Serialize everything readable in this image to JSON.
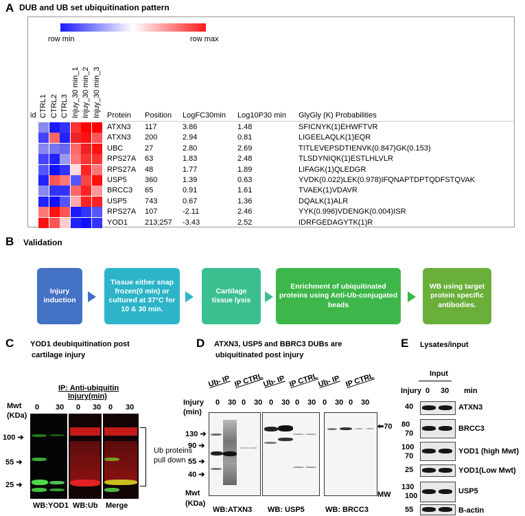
{
  "panelA": {
    "letter": "A",
    "title": "DUB and UB  set ubiquitination pattern",
    "scale": {
      "min_label": "row min",
      "max_label": "row max"
    },
    "id_label": "id",
    "samples": [
      "CTRL1",
      "CTRL2",
      "CTRL3",
      "Injuy_30 min_1",
      "Injuy_30 min_2",
      "Injuy_30 min_3"
    ],
    "headers": [
      "Protein",
      "Position",
      "LogFC30min",
      "Log10P30 min",
      "GlyGly (K) Probabilities"
    ],
    "rows": [
      {
        "protein": "ATXN3",
        "position": "117",
        "logfc": "3.86",
        "logp": "1.48",
        "glygly": "SFICNYK(1)EHWFTVR",
        "colors": [
          "#8888ee",
          "#1a1aff",
          "#3333ff",
          "#ff3333",
          "#ff0000",
          "#ff0000"
        ]
      },
      {
        "protein": "ATXN3",
        "position": "200",
        "logfc": "2.94",
        "logp": "0.81",
        "glygly": "LIGEELAQLK(1)EQR",
        "colors": [
          "#4444ff",
          "#ff6666",
          "#2222ff",
          "#ee2222",
          "#ff1111",
          "#ff5555"
        ]
      },
      {
        "protein": "UBC",
        "position": "27",
        "logfc": "2.80",
        "logp": "2.69",
        "glygly": "TITLEVEPSDTIENVK(0.847)GK(0.153)",
        "colors": [
          "#8888ee",
          "#7777ee",
          "#6666ee",
          "#ff6666",
          "#ee2222",
          "#ff1111"
        ]
      },
      {
        "protein": "RPS27A",
        "position": "63",
        "logfc": "1.83",
        "logp": "2.48",
        "glygly": "TLSDYNIQK(1)ESTLHLVLR",
        "colors": [
          "#4444ff",
          "#2222ff",
          "#9999ee",
          "#ff7777",
          "#ff3333",
          "#ff3333"
        ]
      },
      {
        "protein": "RPS27A",
        "position": "48",
        "logfc": "1.77",
        "logp": "1.89",
        "glygly": "LIFAGK(1)QLEDGR",
        "colors": [
          "#5555ff",
          "#1111ff",
          "#3333ff",
          "#ffdddd",
          "#ff2222",
          "#ff7777"
        ]
      },
      {
        "protein": "USP5",
        "position": "360",
        "logfc": "1.39",
        "logp": "0.63",
        "glygly": "YVDK(0.022)LEK(0.978)IFQNAPTDPTQDFSTQVAK",
        "colors": [
          "#2222ff",
          "#ff5555",
          "#ff7777",
          "#5555ff",
          "#ff4444",
          "#ff1111"
        ]
      },
      {
        "protein": "BRCC3",
        "position": "65",
        "logfc": "0.91",
        "logp": "1.61",
        "glygly": "TVAEK(1)VDAVR",
        "colors": [
          "#8888ee",
          "#3333ff",
          "#3333ff",
          "#ff6666",
          "#ff2222",
          "#ff9999"
        ]
      },
      {
        "protein": "USP5",
        "position": "743",
        "logfc": "0.67",
        "logp": "1.36",
        "glygly": "DQALK(1)ALR",
        "colors": [
          "#2222ff",
          "#1111ff",
          "#5555ff",
          "#ffaaaa",
          "#ff2222",
          "#ff2222"
        ]
      },
      {
        "protein": "RPS27A",
        "position": "107",
        "logfc": "-2.11",
        "logp": "2.46",
        "glygly": "YYK(0.996)VDENGK(0.004)ISR",
        "colors": [
          "#ff7777",
          "#ff1111",
          "#ff5555",
          "#1a1aff",
          "#3333ff",
          "#5555ff"
        ]
      },
      {
        "protein": "YOD1",
        "position": "213;257",
        "logfc": "-3.43",
        "logp": "2.52",
        "glygly": "IDRFGEDAGYTK(1)R",
        "colors": [
          "#ff1111",
          "#ff5555",
          "#ffcccc",
          "#2222ff",
          "#1111ff",
          "#3333ff"
        ]
      }
    ]
  },
  "panelB": {
    "letter": "B",
    "title": "Validation",
    "steps": [
      {
        "text": "Injury induction",
        "color": "#4472c4"
      },
      {
        "text": "Tissue either snap frozen(0 min) or cultured at 37°C for 10 & 30 min.",
        "color": "#2db4c8"
      },
      {
        "text": "Cartilage tissue lysis",
        "color": "#3cbf8e"
      },
      {
        "text": "Enrichment of ubiquitinated proteins using Anti-Ub-conjugated beads",
        "color": "#3db74a"
      },
      {
        "text": "WB using target protein specific antibodies.",
        "color": "#6aaf3a"
      }
    ],
    "arrow_colors": [
      "#4472c4",
      "#2db4c8",
      "#3cbf8e",
      "#3db74a"
    ]
  },
  "panelC": {
    "letter": "C",
    "title_line1": "YOD1 deubiquitination post",
    "title_line2": "cartilage injury",
    "ip_label": "IP: Anti-ubiquitin",
    "injury_label": "Injury(min)",
    "mwt_label": "Mwt",
    "kda_label": "(KDa)",
    "lanes": [
      "0",
      "30",
      "0",
      "30",
      "0",
      "30"
    ],
    "markers": [
      "100",
      "55",
      "25"
    ],
    "bracket_text_1": "Ub proteins",
    "bracket_text_2": "pull down",
    "blot_labels": [
      "WB:YOD1",
      "WB:Ub",
      "Merge"
    ]
  },
  "panelD": {
    "letter": "D",
    "title_line1": "ATXN3, USP5 and BBRC3 DUBs are",
    "title_line2": "ubiquitinated post injury",
    "group_labels": [
      "Ub- IP",
      "IP CTRL",
      "Ub- IP",
      "IP CTRL",
      "Ub- IP",
      "IP CTRL"
    ],
    "injury_label": "Injury",
    "min_label": "(min)",
    "lanes": [
      "0",
      "30",
      "0",
      "30",
      "0",
      "30",
      "0",
      "30",
      "0",
      "30",
      "0",
      "30"
    ],
    "markers": [
      "130",
      "90",
      "55",
      "40"
    ],
    "mwt_label": "Mwt",
    "kda_label": "(KDa)",
    "right_marker": "70",
    "mw_label": "MW",
    "blot_labels": [
      "WB:ATXN3",
      "WB: USP5",
      "WB: BRCC3"
    ]
  },
  "panelE": {
    "letter": "E",
    "title": "Lysates/input",
    "input_label": "Input",
    "injury_label": "Injury",
    "lanes": [
      "0",
      "30"
    ],
    "min_label": "min",
    "rows": [
      {
        "mw": "40",
        "mw2": "",
        "label": "ATXN3"
      },
      {
        "mw": "80",
        "mw2": "70",
        "label": "BRCC3"
      },
      {
        "mw": "100",
        "mw2": "70",
        "label": "YOD1 (high Mwt)"
      },
      {
        "mw": "25",
        "mw2": "",
        "label": "YOD1(Low Mwt)"
      },
      {
        "mw": "130",
        "mw2": "100",
        "label": "USP5"
      },
      {
        "mw": "55",
        "mw2": "",
        "label": "B-actin"
      }
    ]
  }
}
